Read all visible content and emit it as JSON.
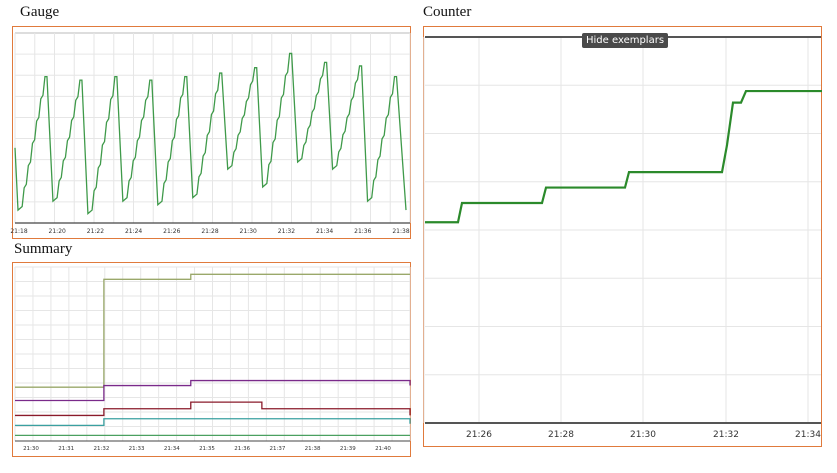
{
  "panels": {
    "gauge": {
      "title": "Gauge"
    },
    "counter": {
      "title": "Counter",
      "tooltip": "Hide exemplars"
    },
    "summary": {
      "title": "Summary"
    }
  },
  "colors": {
    "frame": "#e07a3c",
    "gauge_line": "#3f9a4a",
    "counter_line": "#2b8a2b",
    "summary_olive": "#9aa86a",
    "summary_purple": "#7a2a8a",
    "summary_darkred": "#8a1a2a",
    "summary_teal": "#3aa0a0",
    "summary_green": "#4aa060"
  },
  "chart_data": [
    {
      "type": "line",
      "title": "Gauge",
      "x_tick_labels": [
        "21:18",
        "21:20",
        "21:22",
        "21:24",
        "21:26",
        "21:28",
        "21:30",
        "21:32",
        "21:34",
        "21:36",
        "21:38"
      ],
      "series": [
        {
          "values": [
            0.35,
            0.1,
            0.3,
            0.5,
            0.75,
            0.95,
            0.05,
            0.3,
            0.55,
            0.75,
            0.95,
            0.1,
            0.3,
            0.55,
            0.8,
            0.95,
            0.1
          ]
        }
      ]
    },
    {
      "type": "line",
      "title": "Counter",
      "x_tick_labels": [
        "21:26",
        "21:28",
        "21:30",
        "21:32",
        "21:34"
      ],
      "x": [
        "21:24",
        "21:25.5",
        "21:25.6",
        "21:27.5",
        "21:27.6",
        "21:29.5",
        "21:29.6",
        "21:31.8",
        "21:31.9",
        "21:32",
        "21:32.2",
        "21:32.3",
        "21:34"
      ],
      "series": [
        {
          "values": [
            0.52,
            0.52,
            0.57,
            0.57,
            0.61,
            0.61,
            0.65,
            0.65,
            0.72,
            0.83,
            0.83,
            0.86,
            0.86
          ]
        }
      ]
    },
    {
      "type": "line",
      "title": "Summary",
      "x_tick_labels": [
        "21:30",
        "21:31",
        "21:32",
        "21:33",
        "21:34",
        "21:35",
        "21:36",
        "21:37",
        "21:38",
        "21:39",
        "21:40"
      ],
      "series": [
        {
          "values": [
            0.3,
            0.3,
            0.95,
            0.95,
            0.98,
            0.98,
            0.98,
            0.98,
            0.98,
            0.98,
            0.98
          ]
        },
        {
          "values": [
            0.22,
            0.22,
            0.31,
            0.31,
            0.34,
            0.34,
            0.34,
            0.34,
            0.34,
            0.34,
            0.31
          ]
        },
        {
          "values": [
            0.13,
            0.13,
            0.17,
            0.17,
            0.21,
            0.21,
            0.17,
            0.17,
            0.17,
            0.17,
            0.13
          ]
        },
        {
          "values": [
            0.07,
            0.07,
            0.11,
            0.11,
            0.11,
            0.11,
            0.11,
            0.11,
            0.11,
            0.11,
            0.08
          ]
        },
        {
          "values": [
            0.01,
            0.01,
            0.01,
            0.01,
            0.01,
            0.01,
            0.01,
            0.01,
            0.01,
            0.01,
            0.01
          ]
        }
      ]
    }
  ]
}
